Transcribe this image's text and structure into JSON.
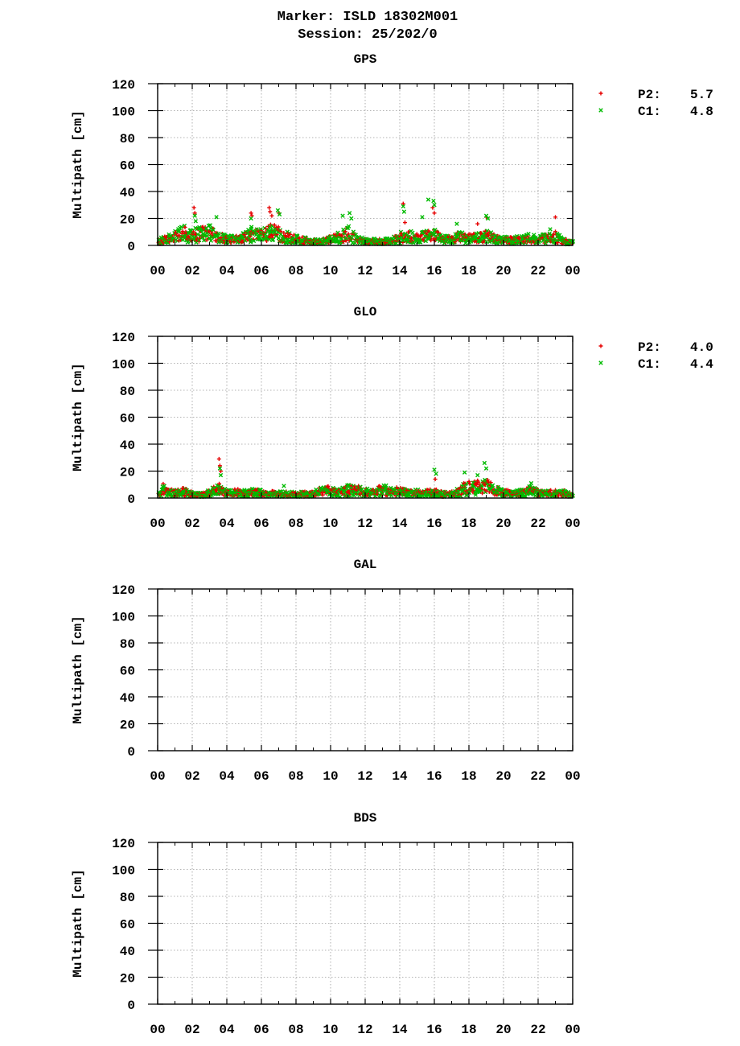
{
  "page": {
    "title_line1": "Marker: ISLD 18302M001",
    "title_line2": "Session: 25/202/0"
  },
  "colors": {
    "P2": "#e60000",
    "C1": "#00bb00",
    "grid": "#9a9a9a",
    "axis": "#000000"
  },
  "chart_data": [
    {
      "type": "scatter",
      "title": "GPS",
      "xlabel": "",
      "ylabel": "Multipath [cm]",
      "xlim": [
        0,
        24
      ],
      "ylim": [
        0,
        120
      ],
      "x_tick_labels": [
        "00",
        "02",
        "04",
        "06",
        "08",
        "10",
        "12",
        "14",
        "16",
        "18",
        "20",
        "22",
        "00"
      ],
      "y_tick_labels": [
        "0",
        "20",
        "40",
        "60",
        "80",
        "100",
        "120"
      ],
      "grid": true,
      "legend_position": "right",
      "legend": [
        {
          "series": "P2",
          "label": "P2:",
          "value": "5.7",
          "marker": "+"
        },
        {
          "series": "C1",
          "label": "C1:",
          "value": "4.8",
          "marker": "x"
        }
      ],
      "profile": [
        [
          0,
          4
        ],
        [
          0.5,
          6
        ],
        [
          1,
          9
        ],
        [
          1.5,
          12
        ],
        [
          2,
          10
        ],
        [
          2.5,
          11
        ],
        [
          3,
          13
        ],
        [
          3.5,
          9
        ],
        [
          4,
          6
        ],
        [
          4.5,
          6
        ],
        [
          5,
          8
        ],
        [
          5.5,
          12
        ],
        [
          6,
          10
        ],
        [
          6.5,
          14
        ],
        [
          7,
          12
        ],
        [
          7.5,
          8
        ],
        [
          8,
          6
        ],
        [
          8.5,
          5
        ],
        [
          9,
          4
        ],
        [
          9.5,
          4
        ],
        [
          10,
          6
        ],
        [
          10.5,
          8
        ],
        [
          11,
          12
        ],
        [
          11.5,
          6
        ],
        [
          12,
          4
        ],
        [
          12.5,
          4
        ],
        [
          13,
          4
        ],
        [
          13.5,
          5
        ],
        [
          14,
          8
        ],
        [
          14.5,
          9
        ],
        [
          15,
          7
        ],
        [
          15.5,
          9
        ],
        [
          16,
          10
        ],
        [
          16.5,
          6
        ],
        [
          17,
          6
        ],
        [
          17.5,
          9
        ],
        [
          18,
          7
        ],
        [
          18.5,
          8
        ],
        [
          19,
          9
        ],
        [
          19.5,
          7
        ],
        [
          20,
          6
        ],
        [
          20.5,
          5
        ],
        [
          21,
          6
        ],
        [
          21.5,
          7
        ],
        [
          22,
          6
        ],
        [
          22.5,
          7
        ],
        [
          23,
          9
        ],
        [
          23.5,
          4
        ],
        [
          24,
          3
        ]
      ],
      "peaks_P2": [
        [
          2.1,
          28
        ],
        [
          2.15,
          24
        ],
        [
          5.4,
          24
        ],
        [
          5.45,
          22
        ],
        [
          6.45,
          28
        ],
        [
          6.5,
          25
        ],
        [
          6.6,
          22
        ],
        [
          7,
          24
        ],
        [
          14.2,
          31
        ],
        [
          14.3,
          17
        ],
        [
          15.9,
          28
        ],
        [
          16.0,
          24
        ],
        [
          18.5,
          16
        ],
        [
          19.0,
          21
        ],
        [
          23.0,
          21
        ]
      ],
      "peaks_C1": [
        [
          2.15,
          22
        ],
        [
          2.2,
          18
        ],
        [
          3.4,
          21
        ],
        [
          5.4,
          20
        ],
        [
          6.95,
          26
        ],
        [
          7.05,
          23
        ],
        [
          10.7,
          22
        ],
        [
          11.1,
          24
        ],
        [
          11.2,
          20
        ],
        [
          14.2,
          29
        ],
        [
          14.25,
          25
        ],
        [
          15.3,
          21
        ],
        [
          15.65,
          34
        ],
        [
          15.95,
          33
        ],
        [
          16.0,
          30
        ],
        [
          17.3,
          16
        ],
        [
          19.0,
          22
        ],
        [
          19.1,
          20
        ],
        [
          22.7,
          12
        ]
      ]
    },
    {
      "type": "scatter",
      "title": "GLO",
      "xlabel": "",
      "ylabel": "Multipath [cm]",
      "xlim": [
        0,
        24
      ],
      "ylim": [
        0,
        120
      ],
      "x_tick_labels": [
        "00",
        "02",
        "04",
        "06",
        "08",
        "10",
        "12",
        "14",
        "16",
        "18",
        "20",
        "22",
        "00"
      ],
      "y_tick_labels": [
        "0",
        "20",
        "40",
        "60",
        "80",
        "100",
        "120"
      ],
      "grid": true,
      "legend_position": "right",
      "legend": [
        {
          "series": "P2",
          "label": "P2:",
          "value": "4.0",
          "marker": "+"
        },
        {
          "series": "C1",
          "label": "C1:",
          "value": "4.4",
          "marker": "x"
        }
      ],
      "profile": [
        [
          0,
          3
        ],
        [
          0.3,
          9
        ],
        [
          0.6,
          6
        ],
        [
          1,
          5
        ],
        [
          1.5,
          7
        ],
        [
          2,
          4
        ],
        [
          2.5,
          3
        ],
        [
          3,
          5
        ],
        [
          3.5,
          10
        ],
        [
          3.8,
          6
        ],
        [
          4,
          5
        ],
        [
          4.5,
          6
        ],
        [
          5,
          5
        ],
        [
          5.5,
          6
        ],
        [
          6,
          5
        ],
        [
          7,
          4
        ],
        [
          8,
          4
        ],
        [
          9,
          4
        ],
        [
          9.5,
          8
        ],
        [
          10,
          7
        ],
        [
          10.5,
          5
        ],
        [
          11,
          9
        ],
        [
          11.5,
          8
        ],
        [
          12,
          6
        ],
        [
          12.5,
          5
        ],
        [
          13,
          9
        ],
        [
          13.5,
          6
        ],
        [
          14,
          7
        ],
        [
          14.5,
          5
        ],
        [
          15,
          6
        ],
        [
          15.5,
          5
        ],
        [
          16,
          6
        ],
        [
          16.5,
          4
        ],
        [
          17,
          4
        ],
        [
          17.5,
          7
        ],
        [
          18,
          12
        ],
        [
          18.5,
          10
        ],
        [
          19,
          12
        ],
        [
          19.5,
          8
        ],
        [
          20,
          5
        ],
        [
          21,
          5
        ],
        [
          21.5,
          8
        ],
        [
          22,
          5
        ],
        [
          22.5,
          5
        ],
        [
          23,
          5
        ],
        [
          23.5,
          5
        ],
        [
          24,
          3
        ]
      ],
      "peaks_P2": [
        [
          3.55,
          29
        ],
        [
          3.6,
          24
        ],
        [
          3.65,
          20
        ],
        [
          16.05,
          14
        ],
        [
          17.7,
          11
        ],
        [
          18.5,
          13
        ],
        [
          18.9,
          10
        ]
      ],
      "peaks_C1": [
        [
          3.6,
          22
        ],
        [
          3.65,
          17
        ],
        [
          7.3,
          9
        ],
        [
          16.0,
          21
        ],
        [
          16.1,
          18
        ],
        [
          17.75,
          19
        ],
        [
          18.5,
          17
        ],
        [
          18.9,
          26
        ],
        [
          19.0,
          22
        ],
        [
          21.6,
          11
        ]
      ]
    },
    {
      "type": "scatter",
      "title": "GAL",
      "xlabel": "",
      "ylabel": "Multipath [cm]",
      "xlim": [
        0,
        24
      ],
      "ylim": [
        0,
        120
      ],
      "x_tick_labels": [
        "00",
        "02",
        "04",
        "06",
        "08",
        "10",
        "12",
        "14",
        "16",
        "18",
        "20",
        "22",
        "00"
      ],
      "y_tick_labels": [
        "0",
        "20",
        "40",
        "60",
        "80",
        "100",
        "120"
      ],
      "grid": true,
      "legend": [],
      "profile": [],
      "peaks_P2": [],
      "peaks_C1": []
    },
    {
      "type": "scatter",
      "title": "BDS",
      "xlabel": "",
      "ylabel": "Multipath [cm]",
      "xlim": [
        0,
        24
      ],
      "ylim": [
        0,
        120
      ],
      "x_tick_labels": [
        "00",
        "02",
        "04",
        "06",
        "08",
        "10",
        "12",
        "14",
        "16",
        "18",
        "20",
        "22",
        "00"
      ],
      "y_tick_labels": [
        "0",
        "20",
        "40",
        "60",
        "80",
        "100",
        "120"
      ],
      "grid": true,
      "legend": [],
      "profile": [],
      "peaks_P2": [],
      "peaks_C1": []
    }
  ]
}
